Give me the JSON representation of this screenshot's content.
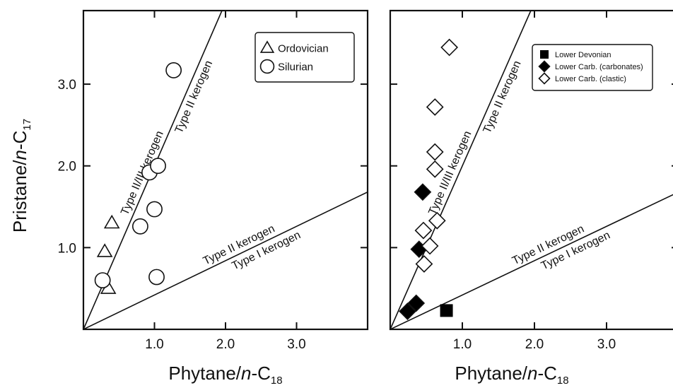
{
  "chart_data": [
    {
      "type": "scatter",
      "xlabel": {
        "base": "Phytane/",
        "italic": "n",
        "rest": "-C",
        "sub": "18"
      },
      "ylabel": {
        "base": "Pristane/",
        "italic": "n",
        "rest": "-C",
        "sub": "17"
      },
      "xlim": [
        0,
        4.0
      ],
      "ylim": [
        0,
        3.9
      ],
      "xticks": [
        1.0,
        2.0,
        3.0
      ],
      "xtick_labels": [
        "1.0",
        "2.0",
        "3.0"
      ],
      "yticks": [
        1.0,
        2.0,
        3.0
      ],
      "ytick_labels": [
        "1.0",
        "2.0",
        "3.0"
      ],
      "grid": false,
      "legend_position": "top-right",
      "lines": [
        {
          "name": "upper",
          "slope": 2.0,
          "label_above": "Type II/III kerogen",
          "label_below": "Type II kerogen"
        },
        {
          "name": "lower",
          "slope": 0.42,
          "label_above": "Type II kerogen",
          "label_below": "Type I kerogen"
        }
      ],
      "series": [
        {
          "name": "Ordovician",
          "marker": "triangle-open",
          "points": [
            [
              0.4,
              1.3
            ],
            [
              0.3,
              0.95
            ],
            [
              0.35,
              0.5
            ]
          ]
        },
        {
          "name": "Silurian",
          "marker": "circle-open",
          "points": [
            [
              1.27,
              3.17
            ],
            [
              0.93,
              1.92
            ],
            [
              1.05,
              2.0
            ],
            [
              1.0,
              1.47
            ],
            [
              0.8,
              1.26
            ],
            [
              1.03,
              0.64
            ],
            [
              0.27,
              0.6
            ]
          ]
        }
      ]
    },
    {
      "type": "scatter",
      "xlabel": {
        "base": "Phytane/",
        "italic": "n",
        "rest": "-C",
        "sub": "18"
      },
      "xlim": [
        0,
        4.0
      ],
      "ylim": [
        0,
        3.9
      ],
      "xticks": [
        1.0,
        2.0,
        3.0
      ],
      "xtick_labels": [
        "1.0",
        "2.0",
        "3.0"
      ],
      "yticks": [
        1.0,
        2.0,
        3.0
      ],
      "grid": false,
      "legend_position": "top-right",
      "lines": [
        {
          "name": "upper",
          "slope": 2.0,
          "label_above": "Type II/III kerogen",
          "label_below": "Type II kerogen"
        },
        {
          "name": "lower",
          "slope": 0.42,
          "label_above": "Type II kerogen",
          "label_below": "Type I kerogen"
        }
      ],
      "series": [
        {
          "name": "Lower Devonian",
          "marker": "square-filled",
          "points": [
            [
              0.78,
              0.23
            ]
          ]
        },
        {
          "name": "Lower Carb. (carbonates)",
          "marker": "diamond-filled",
          "points": [
            [
              0.45,
              1.68
            ],
            [
              0.4,
              0.98
            ],
            [
              0.36,
              0.32
            ],
            [
              0.24,
              0.22
            ]
          ]
        },
        {
          "name": "Lower Carb. (clastic)",
          "marker": "diamond-open",
          "points": [
            [
              0.82,
              3.45
            ],
            [
              0.62,
              2.72
            ],
            [
              0.62,
              2.17
            ],
            [
              0.62,
              1.96
            ],
            [
              0.65,
              1.33
            ],
            [
              0.46,
              1.21
            ],
            [
              0.55,
              1.02
            ],
            [
              0.47,
              0.8
            ]
          ]
        }
      ]
    }
  ]
}
